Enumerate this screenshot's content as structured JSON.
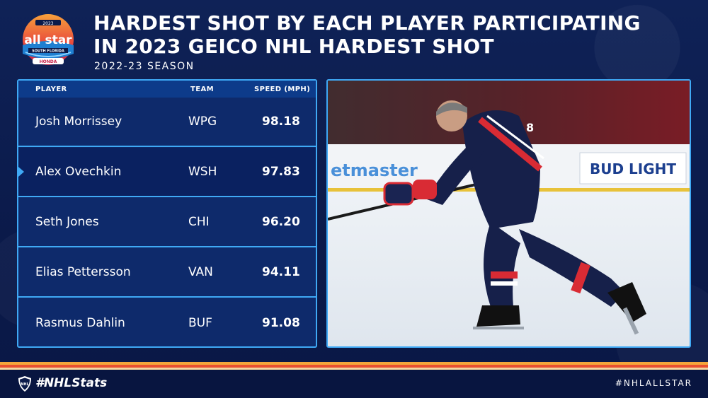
{
  "header": {
    "title": "HARDEST SHOT BY EACH PLAYER PARTICIPATING IN 2023 GEICO NHL HARDEST SHOT",
    "subtitle": "2022-23 SEASON",
    "logo": {
      "top_text": "2023",
      "main_text": "all star",
      "region_text": "SOUTH FLORIDA",
      "sponsor_text": "HONDA",
      "icon": "all-star-logo"
    }
  },
  "table": {
    "columns": {
      "player": "PLAYER",
      "team": "TEAM",
      "speed": "SPEED (MPH)"
    },
    "rows": [
      {
        "player": "Josh Morrissey",
        "team": "WPG",
        "speed": "98.18",
        "highlight": false
      },
      {
        "player": "Alex Ovechkin",
        "team": "WSH",
        "speed": "97.83",
        "highlight": true
      },
      {
        "player": "Seth Jones",
        "team": "CHI",
        "speed": "96.20",
        "highlight": false
      },
      {
        "player": "Elias Pettersson",
        "team": "VAN",
        "speed": "94.11",
        "highlight": false
      },
      {
        "player": "Rasmus Dahlin",
        "team": "BUF",
        "speed": "91.08",
        "highlight": false
      }
    ]
  },
  "photo": {
    "boards_text_left": "etmaster",
    "boards_text_right": "BUD LIGHT",
    "jersey_number": "8",
    "icon": "hockey-player-photo"
  },
  "footer": {
    "brand": "#NHLStats",
    "hashtag": "#NHLALLSTAR",
    "icon": "nhl-shield-icon"
  },
  "colors": {
    "background": "#0b1a4a",
    "accent": "#3fa9f5",
    "stripe_orange": "#f4a63a",
    "stripe_red": "#e9502f"
  }
}
